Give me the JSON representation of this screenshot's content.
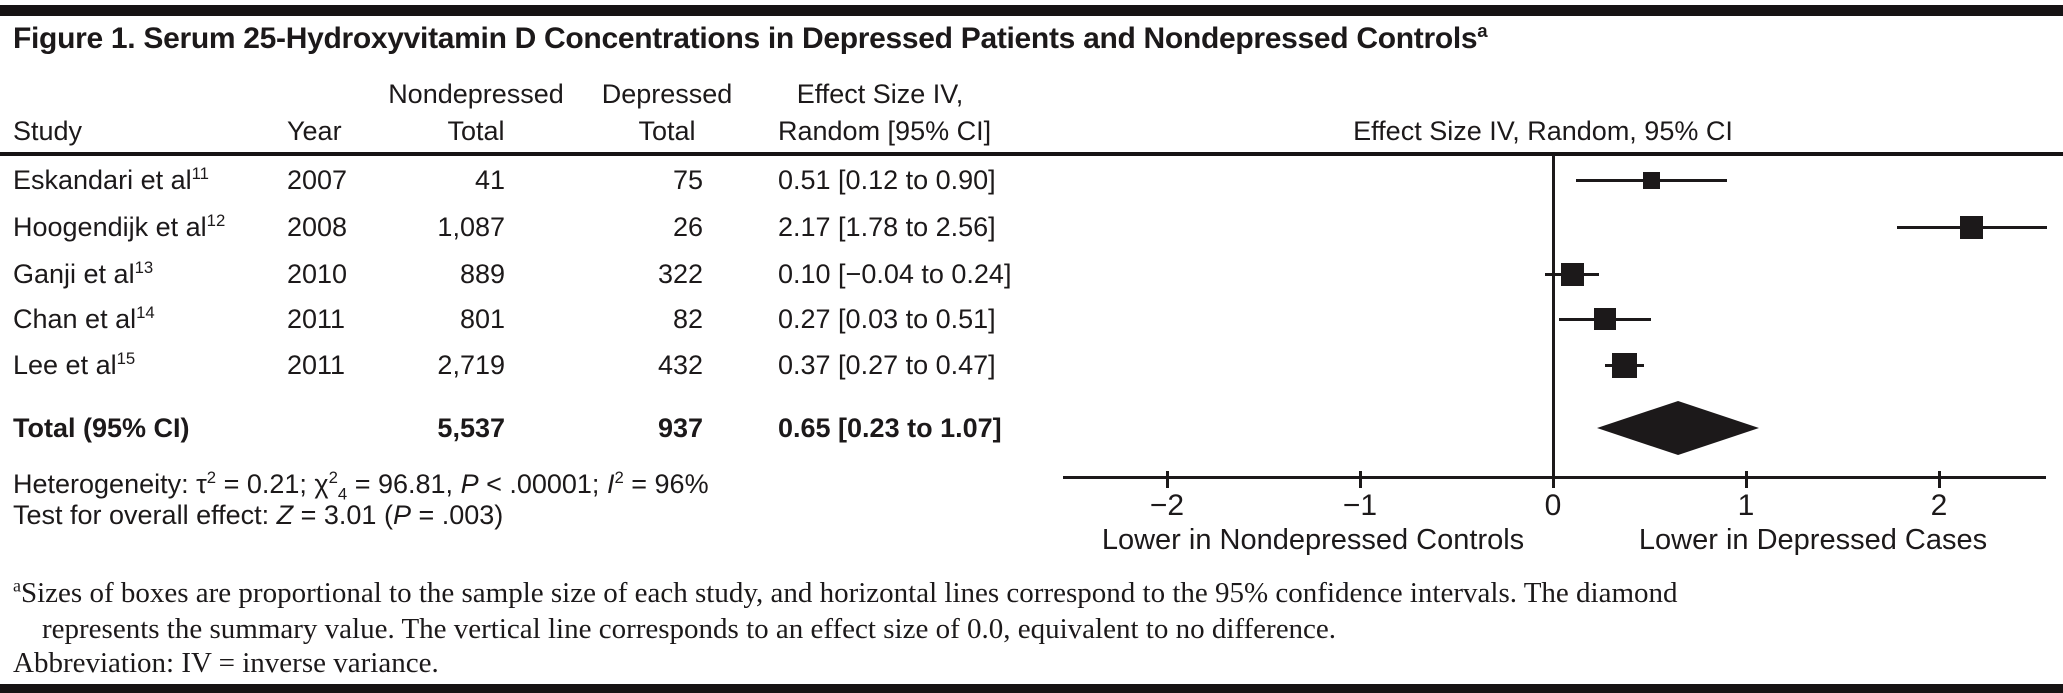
{
  "figure": {
    "title_segments": [
      {
        "t": "Figure 1. Serum 25-Hydroxyvitamin D Concentrations in Depressed Patients and Nondepressed Controls"
      },
      {
        "t": "a",
        "s": "sup"
      }
    ]
  },
  "table": {
    "headers": {
      "study": "Study",
      "year": "Year",
      "nondepressed_line1": "Nondepressed",
      "nondepressed_line2": "Total",
      "depressed_line1": "Depressed",
      "depressed_line2": "Total",
      "effect_line1": "Effect Size IV,",
      "effect_line2": "Random [95% CI]"
    },
    "rows": [
      {
        "study": "Eskandari et al",
        "ref": "11",
        "year": "2007",
        "nondepressed_total": "41",
        "depressed_total": "75",
        "effect": "0.51 [0.12 to 0.90]"
      },
      {
        "study": "Hoogendijk et al",
        "ref": "12",
        "year": "2008",
        "nondepressed_total": "1,087",
        "depressed_total": "26",
        "effect": "2.17 [1.78 to 2.56]"
      },
      {
        "study": "Ganji et al",
        "ref": "13",
        "year": "2010",
        "nondepressed_total": "889",
        "depressed_total": "322",
        "effect": "0.10 [−0.04 to 0.24]"
      },
      {
        "study": "Chan et al",
        "ref": "14",
        "year": "2011",
        "nondepressed_total": "801",
        "depressed_total": "82",
        "effect": "0.27 [0.03 to 0.51]"
      },
      {
        "study": "Lee et al",
        "ref": "15",
        "year": "2011",
        "nondepressed_total": "2,719",
        "depressed_total": "432",
        "effect": "0.37 [0.27 to 0.47]"
      }
    ],
    "total_row": {
      "label": "Total (95% CI)",
      "nondepressed_total": "5,537",
      "depressed_total": "937",
      "effect": "0.65 [0.23 to 1.07]"
    }
  },
  "stats": {
    "heterogeneity_segments": [
      {
        "t": "Heterogeneity: τ"
      },
      {
        "t": "2",
        "s": "sup"
      },
      {
        "t": " = 0.21; χ"
      },
      {
        "t": "2",
        "s": "sup"
      },
      {
        "t": "4",
        "s": "sub"
      },
      {
        "t": " = 96.81, "
      },
      {
        "t": "P",
        "s": "i"
      },
      {
        "t": " < .00001; "
      },
      {
        "t": "I",
        "s": "i"
      },
      {
        "t": "2",
        "s": "sup"
      },
      {
        "t": " = 96%"
      }
    ],
    "overall_effect_segments": [
      {
        "t": "Test for overall effect: "
      },
      {
        "t": "Z",
        "s": "i"
      },
      {
        "t": " = 3.01 ("
      },
      {
        "t": "P",
        "s": "i"
      },
      {
        "t": " = .003)"
      }
    ]
  },
  "chart_data": {
    "type": "forest",
    "plot_title": "Effect Size IV, Random, 95% CI",
    "x_axis": {
      "tick_values": [
        -2,
        -1,
        0,
        1,
        2
      ],
      "tick_labels": [
        "−2",
        "−1",
        "0",
        "1",
        "2"
      ],
      "range": [
        -2.55,
        2.55
      ],
      "zero_reference_line": 0,
      "label_left": "Lower in Nondepressed Controls",
      "label_right": "Lower in Depressed Cases"
    },
    "studies": [
      {
        "label": "Eskandari et al",
        "ref": "11",
        "year": 2007,
        "nondepressed_total": 41,
        "depressed_total": 75,
        "effect": 0.51,
        "ci_low": 0.12,
        "ci_high": 0.9
      },
      {
        "label": "Hoogendijk et al",
        "ref": "12",
        "year": 2008,
        "nondepressed_total": 1087,
        "depressed_total": 26,
        "effect": 2.17,
        "ci_low": 1.78,
        "ci_high": 2.56
      },
      {
        "label": "Ganji et al",
        "ref": "13",
        "year": 2010,
        "nondepressed_total": 889,
        "depressed_total": 322,
        "effect": 0.1,
        "ci_low": -0.04,
        "ci_high": 0.24
      },
      {
        "label": "Chan et al",
        "ref": "14",
        "year": 2011,
        "nondepressed_total": 801,
        "depressed_total": 82,
        "effect": 0.27,
        "ci_low": 0.03,
        "ci_high": 0.51
      },
      {
        "label": "Lee et al",
        "ref": "15",
        "year": 2011,
        "nondepressed_total": 2719,
        "depressed_total": 432,
        "effect": 0.37,
        "ci_low": 0.27,
        "ci_high": 0.47
      }
    ],
    "summary": {
      "label": "Total (95% CI)",
      "nondepressed_total": 5537,
      "depressed_total": 937,
      "effect": 0.65,
      "ci_low": 0.23,
      "ci_high": 1.07
    }
  },
  "footnote": {
    "line1_segments": [
      {
        "t": "a",
        "s": "sup"
      },
      {
        "t": "Sizes of boxes are proportional to the sample size of each study, and horizontal lines correspond to the 95% confidence intervals. The diamond"
      }
    ],
    "line2": "represents the summary value. The vertical line corresponds to an effect size of 0.0, equivalent to no difference.",
    "line3": "Abbreviation: IV = inverse variance."
  }
}
